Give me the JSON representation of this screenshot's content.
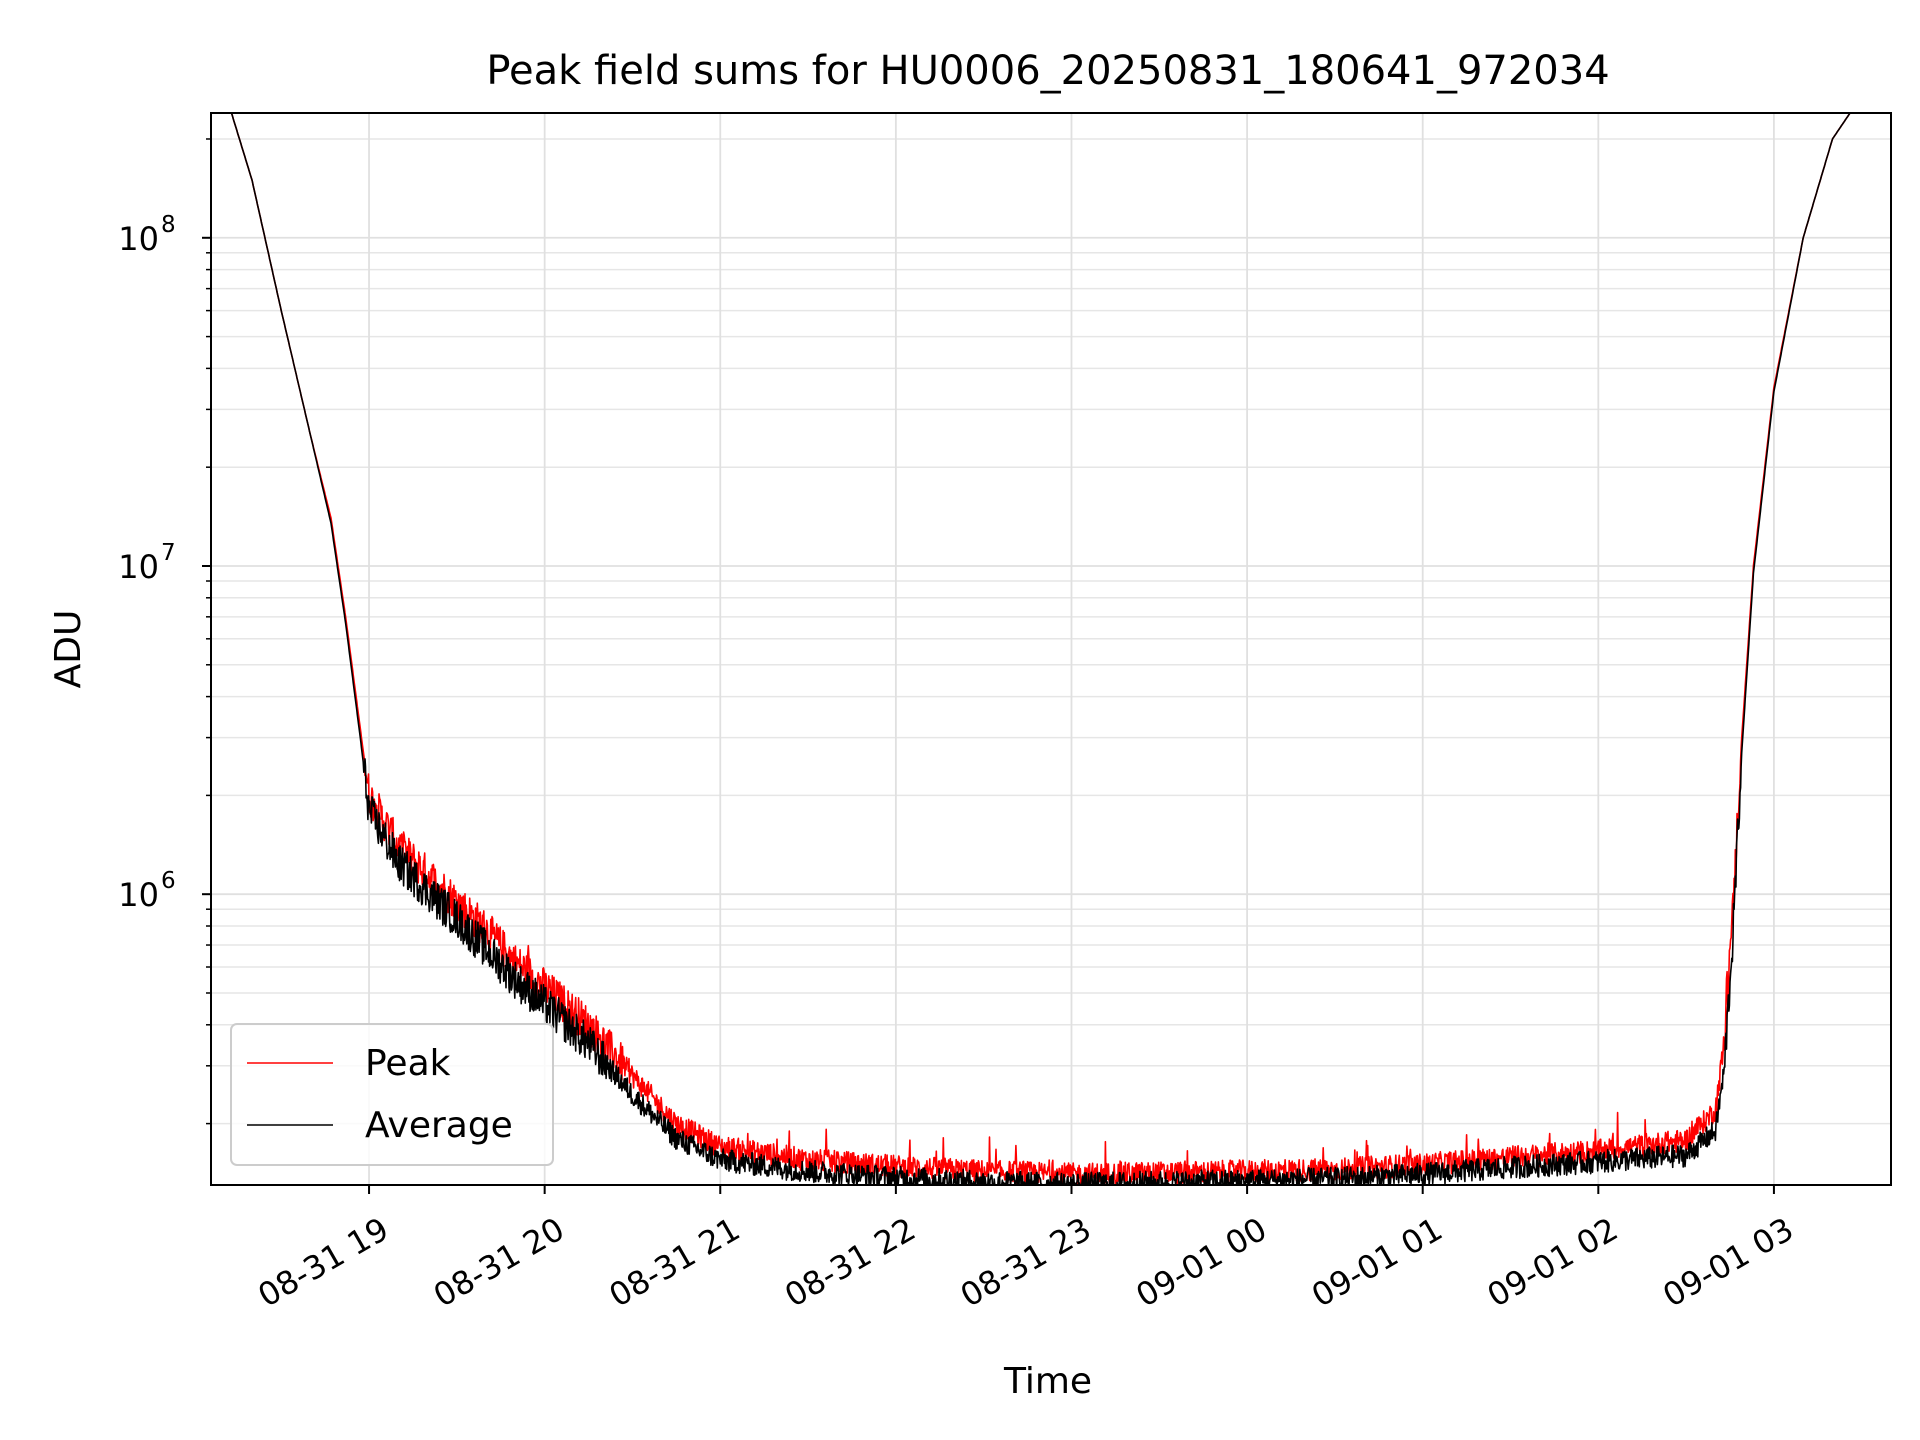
{
  "chart_data": {
    "type": "line",
    "title": "Peak field sums for HU0006_20250831_180641_972034",
    "xlabel": "Time",
    "ylabel": "ADU",
    "yscale": "log",
    "ylim": [
      130000,
      240000000
    ],
    "xlim": [
      "2025-08-31 18:06",
      "2025-09-01 03:40"
    ],
    "grid": true,
    "legend_position": "lower-left",
    "x_ticks": [
      "08-31 19",
      "08-31 20",
      "08-31 21",
      "08-31 22",
      "08-31 23",
      "09-01 00",
      "09-01 01",
      "09-01 02",
      "09-01 03"
    ],
    "y_ticks": [
      {
        "value": 1000000,
        "base": "10",
        "exp": "6"
      },
      {
        "value": 10000000,
        "base": "10",
        "exp": "7"
      },
      {
        "value": 100000000,
        "base": "10",
        "exp": "8"
      }
    ],
    "series": [
      {
        "name": "Peak",
        "color": "#ff0000",
        "points": [
          [
            "2025-08-31 18:13",
            240000000
          ],
          [
            "2025-08-31 18:20",
            150000000
          ],
          [
            "2025-08-31 18:30",
            60000000
          ],
          [
            "2025-08-31 18:40",
            25000000
          ],
          [
            "2025-08-31 18:47",
            14000000
          ],
          [
            "2025-08-31 18:52",
            7000000
          ],
          [
            "2025-08-31 18:57",
            3200000
          ],
          [
            "2025-08-31 19:00",
            2000000
          ],
          [
            "2025-08-31 19:10",
            1400000
          ],
          [
            "2025-08-31 19:20",
            1150000
          ],
          [
            "2025-08-31 19:30",
            950000
          ],
          [
            "2025-08-31 19:40",
            780000
          ],
          [
            "2025-08-31 19:50",
            620000
          ],
          [
            "2025-08-31 20:00",
            520000
          ],
          [
            "2025-08-31 20:15",
            400000
          ],
          [
            "2025-08-31 20:30",
            280000
          ],
          [
            "2025-08-31 20:45",
            200000
          ],
          [
            "2025-08-31 21:00",
            170000
          ],
          [
            "2025-08-31 21:30",
            155000
          ],
          [
            "2025-08-31 22:00",
            148000
          ],
          [
            "2025-08-31 22:30",
            143000
          ],
          [
            "2025-08-31 23:00",
            140000
          ],
          [
            "2025-09-01 00:00",
            143000
          ],
          [
            "2025-09-01 00:30",
            145000
          ],
          [
            "2025-09-01 01:00",
            150000
          ],
          [
            "2025-09-01 01:30",
            158000
          ],
          [
            "2025-09-01 02:00",
            165000
          ],
          [
            "2025-09-01 02:30",
            178000
          ],
          [
            "2025-09-01 02:40",
            220000
          ],
          [
            "2025-09-01 02:43",
            350000
          ],
          [
            "2025-09-01 02:46",
            900000
          ],
          [
            "2025-09-01 02:49",
            3000000
          ],
          [
            "2025-09-01 02:53",
            10000000
          ],
          [
            "2025-09-01 03:00",
            35000000
          ],
          [
            "2025-09-01 03:10",
            100000000
          ],
          [
            "2025-09-01 03:20",
            200000000
          ],
          [
            "2025-09-01 03:26",
            240000000
          ]
        ]
      },
      {
        "name": "Average",
        "color": "#000000",
        "points": [
          [
            "2025-08-31 18:13",
            240000000
          ],
          [
            "2025-08-31 18:20",
            150000000
          ],
          [
            "2025-08-31 18:30",
            60000000
          ],
          [
            "2025-08-31 18:40",
            25000000
          ],
          [
            "2025-08-31 18:47",
            13500000
          ],
          [
            "2025-08-31 18:52",
            6700000
          ],
          [
            "2025-08-31 18:57",
            3000000
          ],
          [
            "2025-08-31 19:00",
            1800000
          ],
          [
            "2025-08-31 19:10",
            1250000
          ],
          [
            "2025-08-31 19:20",
            1020000
          ],
          [
            "2025-08-31 19:30",
            840000
          ],
          [
            "2025-08-31 19:40",
            680000
          ],
          [
            "2025-08-31 19:50",
            550000
          ],
          [
            "2025-08-31 20:00",
            460000
          ],
          [
            "2025-08-31 20:15",
            350000
          ],
          [
            "2025-08-31 20:30",
            245000
          ],
          [
            "2025-08-31 20:45",
            180000
          ],
          [
            "2025-08-31 21:00",
            155000
          ],
          [
            "2025-08-31 21:30",
            143000
          ],
          [
            "2025-08-31 22:00",
            137000
          ],
          [
            "2025-08-31 22:30",
            133000
          ],
          [
            "2025-08-31 23:00",
            131000
          ],
          [
            "2025-09-01 00:00",
            134000
          ],
          [
            "2025-09-01 00:30",
            136000
          ],
          [
            "2025-09-01 01:00",
            140000
          ],
          [
            "2025-09-01 01:30",
            147000
          ],
          [
            "2025-09-01 02:00",
            153000
          ],
          [
            "2025-09-01 02:30",
            160000
          ],
          [
            "2025-09-01 02:40",
            190000
          ],
          [
            "2025-09-01 02:43",
            290000
          ],
          [
            "2025-09-01 02:46",
            750000
          ],
          [
            "2025-09-01 02:49",
            2700000
          ],
          [
            "2025-09-01 02:53",
            9500000
          ],
          [
            "2025-09-01 03:00",
            34000000
          ],
          [
            "2025-09-01 03:10",
            100000000
          ],
          [
            "2025-09-01 03:20",
            200000000
          ],
          [
            "2025-09-01 03:26",
            240000000
          ]
        ]
      }
    ]
  }
}
